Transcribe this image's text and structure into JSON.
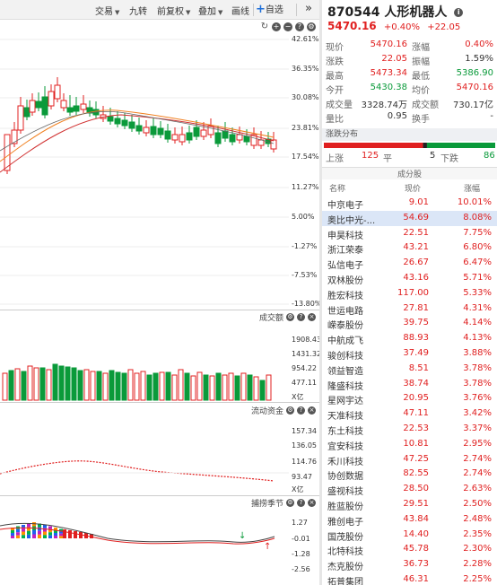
{
  "toolbar": {
    "items": [
      {
        "label": "交易",
        "dropdown": true
      },
      {
        "label": "九转",
        "dropdown": false
      },
      {
        "label": "前复权",
        "dropdown": true
      },
      {
        "label": "叠加",
        "dropdown": true
      },
      {
        "label": "画线",
        "dropdown": false
      }
    ],
    "watchlist_label": "自选",
    "expand_label": "»"
  },
  "main_chart": {
    "y_axis_labels": [
      "42.61%",
      "36.35%",
      "30.08%",
      "23.81%",
      "17.54%",
      "11.27%",
      "5.00%",
      "-1.27%",
      "-7.53%",
      "-13.80%"
    ]
  },
  "volume_panel": {
    "title": "成交额",
    "y_axis_labels": [
      "1908.43",
      "1431.32",
      "954.22",
      "477.11"
    ],
    "unit": "X亿"
  },
  "flow_panel": {
    "title": "流动资金",
    "y_axis_labels": [
      "157.34",
      "136.05",
      "114.76",
      "93.47"
    ],
    "unit": "X亿"
  },
  "capture_panel": {
    "title": "捕捞季节",
    "y_axis_labels": [
      "1.27",
      "-0.01",
      "-1.28",
      "-2.56"
    ]
  },
  "stock": {
    "code": "870544",
    "name": "人形机器人",
    "price": "5470.16",
    "change_pct": "+0.40%",
    "change": "+22.05"
  },
  "quote_rows": [
    {
      "l1": "现价",
      "v1": "5470.16",
      "c1": "red",
      "l2": "涨幅",
      "v2": "0.40%",
      "c2": "red"
    },
    {
      "l1": "涨跌",
      "v1": "22.05",
      "c1": "red",
      "l2": "振幅",
      "v2": "1.59%",
      "c2": "dark"
    },
    {
      "l1": "最高",
      "v1": "5473.34",
      "c1": "red",
      "l2": "最低",
      "v2": "5386.90",
      "c2": "green"
    },
    {
      "l1": "今开",
      "v1": "5430.38",
      "c1": "green",
      "l2": "均价",
      "v2": "5470.16",
      "c2": "red"
    },
    {
      "l1": "成交量",
      "v1": "3328.74万",
      "c1": "dark",
      "l2": "成交额",
      "v2": "730.17亿",
      "c2": "dark"
    },
    {
      "l1": "量比",
      "v1": "0.95",
      "c1": "dark",
      "l2": "换手",
      "v2": "-",
      "c2": "dark"
    }
  ],
  "distribution": {
    "title": "涨跌分布",
    "up_label": "上涨",
    "up_count": "125",
    "flat_label": "平",
    "flat_count": "5",
    "down_label": "下跌",
    "down_count": "86",
    "up": 125,
    "flat": 5,
    "down": 86
  },
  "components": {
    "title": "成分股",
    "headers": {
      "name": "名称",
      "price": "现价",
      "change": "涨幅"
    },
    "rows": [
      {
        "name": "中京电子",
        "price": "9.01",
        "change": "10.01%"
      },
      {
        "name": "奥比中光-...",
        "price": "54.69",
        "change": "8.08%",
        "selected": true
      },
      {
        "name": "申昊科技",
        "price": "22.51",
        "change": "7.75%"
      },
      {
        "name": "浙江荣泰",
        "price": "43.21",
        "change": "6.80%"
      },
      {
        "name": "弘信电子",
        "price": "26.67",
        "change": "6.47%"
      },
      {
        "name": "双林股份",
        "price": "43.16",
        "change": "5.71%"
      },
      {
        "name": "胜宏科技",
        "price": "117.00",
        "change": "5.33%"
      },
      {
        "name": "世运电路",
        "price": "27.81",
        "change": "4.31%"
      },
      {
        "name": "嵘泰股份",
        "price": "39.75",
        "change": "4.14%"
      },
      {
        "name": "中航成飞",
        "price": "88.93",
        "change": "4.13%"
      },
      {
        "name": "骏创科技",
        "price": "37.49",
        "change": "3.88%"
      },
      {
        "name": "领益智造",
        "price": "8.51",
        "change": "3.78%"
      },
      {
        "name": "隆盛科技",
        "price": "38.74",
        "change": "3.78%"
      },
      {
        "name": "星网宇达",
        "price": "20.95",
        "change": "3.76%"
      },
      {
        "name": "天准科技",
        "price": "47.11",
        "change": "3.42%"
      },
      {
        "name": "东土科技",
        "price": "22.53",
        "change": "3.37%"
      },
      {
        "name": "宜安科技",
        "price": "10.81",
        "change": "2.95%"
      },
      {
        "name": "禾川科技",
        "price": "47.25",
        "change": "2.74%"
      },
      {
        "name": "协创数据",
        "price": "82.55",
        "change": "2.74%"
      },
      {
        "name": "盛视科技",
        "price": "28.50",
        "change": "2.63%"
      },
      {
        "name": "胜蓝股份",
        "price": "29.51",
        "change": "2.50%"
      },
      {
        "name": "雅创电子",
        "price": "43.84",
        "change": "2.48%"
      },
      {
        "name": "国茂股份",
        "price": "14.40",
        "change": "2.35%"
      },
      {
        "name": "北特科技",
        "price": "45.78",
        "change": "2.30%"
      },
      {
        "name": "杰克股份",
        "price": "36.73",
        "change": "2.28%"
      },
      {
        "name": "拓普集团",
        "price": "46.31",
        "change": "2.25%"
      }
    ]
  },
  "colors": {
    "up": "#e02020",
    "down": "#0a9a3a",
    "flat": "#222222",
    "selected_row": "#dbe6f7"
  }
}
